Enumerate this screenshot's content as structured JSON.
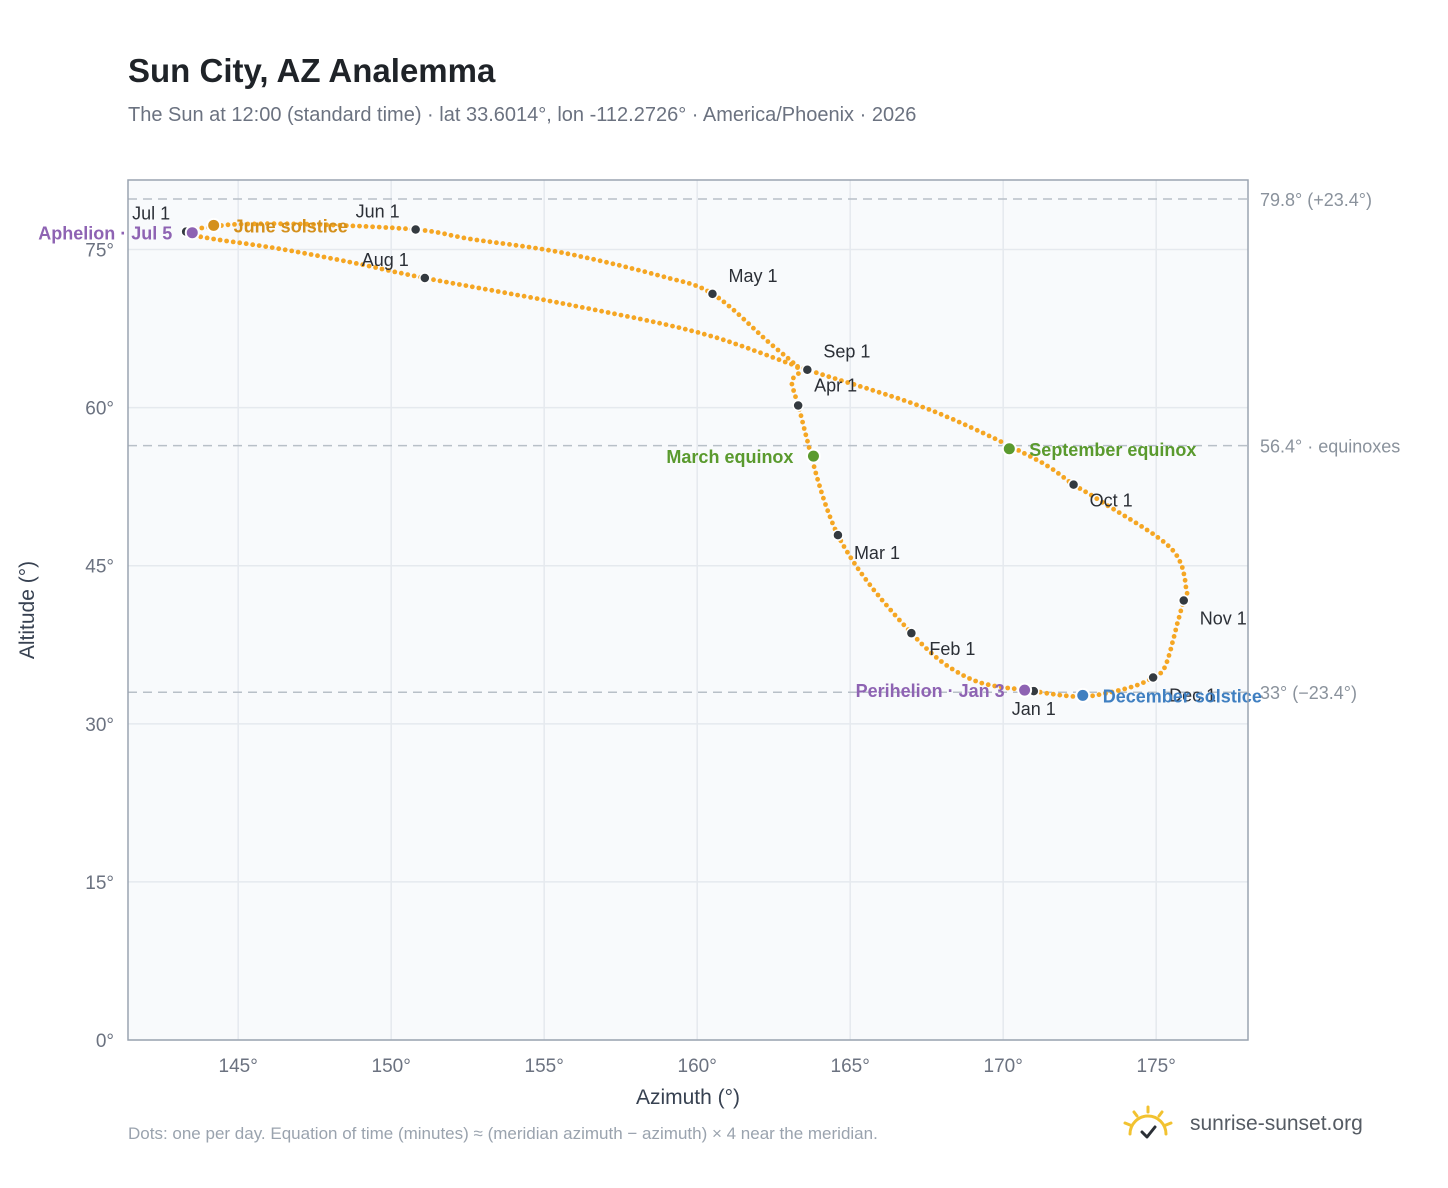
{
  "header": {
    "title": "Sun City, AZ Analemma",
    "subtitle": "The Sun at 12:00 (standard time) · lat 33.6014°, lon -112.2726° · America/Phoenix · 2026"
  },
  "footer": {
    "note": "Dots: one per day. Equation of time (minutes) ≈ (meridian azimuth − azimuth) × 4 near the meridian.",
    "brand": "sunrise-sunset.org",
    "brand_icon": "sun-check-icon"
  },
  "colors": {
    "path": "#f5a623",
    "month_dot": "#343a40",
    "equinox": "#5a9a2e",
    "june_solstice": "#d4901c",
    "december_solstice": "#3f7fc1",
    "aphelion_perihelion": "#8e63b3",
    "plot_bg": "#f8fafc",
    "grid": "#e5e9ee",
    "reference_line": "#b8c0c8"
  },
  "chart_data": {
    "type": "scatter",
    "xlabel": "Azimuth (°)",
    "ylabel": "Altitude (°)",
    "xlim": [
      141.4,
      178.0
    ],
    "ylim": [
      0,
      81.6
    ],
    "x_ticks": [
      145,
      150,
      155,
      160,
      165,
      170,
      175
    ],
    "x_tick_labels": [
      "145°",
      "150°",
      "155°",
      "160°",
      "165°",
      "170°",
      "175°"
    ],
    "y_ticks": [
      0,
      15,
      30,
      45,
      60,
      75
    ],
    "y_tick_labels": [
      "0°",
      "15°",
      "30°",
      "45°",
      "60°",
      "75°"
    ],
    "grid": true,
    "reference_lines": [
      {
        "altitude": 79.8,
        "label": "79.8° (+23.4°)"
      },
      {
        "altitude": 56.4,
        "label": "56.4° · equinoxes"
      },
      {
        "altitude": 33.0,
        "label": "33° (−23.4°)"
      }
    ],
    "daily_path": [
      [
        171.0,
        33.1
      ],
      [
        168.9,
        34.3
      ],
      [
        167.0,
        38.6
      ],
      [
        164.6,
        47.9
      ],
      [
        163.3,
        60.2
      ],
      [
        163.1,
        62.5
      ],
      [
        163.3,
        63.7
      ],
      [
        162.3,
        66.3
      ],
      [
        160.5,
        70.8
      ],
      [
        158.8,
        72.5
      ],
      [
        155.6,
        74.7
      ],
      [
        152.6,
        76.0
      ],
      [
        150.8,
        76.9
      ],
      [
        147.3,
        77.4
      ],
      [
        145.0,
        77.4
      ],
      [
        144.0,
        77.1
      ],
      [
        143.4,
        76.9
      ],
      [
        143.3,
        76.7
      ],
      [
        143.5,
        76.4
      ],
      [
        144.2,
        76.0
      ],
      [
        146.5,
        75.0
      ],
      [
        149.0,
        73.6
      ],
      [
        151.1,
        72.3
      ],
      [
        156.1,
        69.6
      ],
      [
        160.2,
        67.0
      ],
      [
        163.6,
        63.6
      ],
      [
        167.6,
        59.8
      ],
      [
        171.0,
        55.2
      ],
      [
        172.3,
        52.7
      ],
      [
        173.2,
        51.1
      ],
      [
        175.5,
        46.6
      ],
      [
        176.0,
        42.5
      ],
      [
        175.9,
        41.7
      ],
      [
        175.7,
        39.6
      ],
      [
        175.3,
        35.5
      ],
      [
        174.9,
        34.4
      ],
      [
        174.2,
        33.5
      ],
      [
        173.0,
        32.7
      ],
      [
        172.3,
        32.6
      ],
      [
        171.0,
        33.1
      ]
    ],
    "month_markers": [
      {
        "label": "Jan 1",
        "azimuth": 171.0,
        "altitude": 33.1
      },
      {
        "label": "Feb 1",
        "azimuth": 167.0,
        "altitude": 38.6
      },
      {
        "label": "Mar 1",
        "azimuth": 164.6,
        "altitude": 47.9
      },
      {
        "label": "Apr 1",
        "azimuth": 163.3,
        "altitude": 60.2
      },
      {
        "label": "May 1",
        "azimuth": 160.5,
        "altitude": 70.8
      },
      {
        "label": "Jun 1",
        "azimuth": 150.8,
        "altitude": 76.9
      },
      {
        "label": "Jul 1",
        "azimuth": 143.3,
        "altitude": 76.7
      },
      {
        "label": "Aug 1",
        "azimuth": 151.1,
        "altitude": 72.3
      },
      {
        "label": "Sep 1",
        "azimuth": 163.6,
        "altitude": 63.6
      },
      {
        "label": "Oct 1",
        "azimuth": 172.3,
        "altitude": 52.7
      },
      {
        "label": "Nov 1",
        "azimuth": 175.9,
        "altitude": 41.7
      },
      {
        "label": "Dec 1",
        "azimuth": 174.9,
        "altitude": 34.4
      }
    ],
    "events": [
      {
        "label": "March equinox",
        "azimuth": 163.8,
        "altitude": 55.4,
        "color_key": "equinox",
        "side": "left"
      },
      {
        "label": "September equinox",
        "azimuth": 170.2,
        "altitude": 56.1,
        "color_key": "equinox",
        "side": "right"
      },
      {
        "label": "June solstice",
        "azimuth": 144.2,
        "altitude": 77.3,
        "color_key": "june_solstice",
        "side": "right"
      },
      {
        "label": "December solstice",
        "azimuth": 172.6,
        "altitude": 32.7,
        "color_key": "december_solstice",
        "side": "right"
      },
      {
        "label": "Aphelion · Jul 5",
        "azimuth": 143.5,
        "altitude": 76.6,
        "color_key": "aphelion_perihelion",
        "side": "left"
      },
      {
        "label": "Perihelion · Jan 3",
        "azimuth": 170.7,
        "altitude": 33.2,
        "color_key": "aphelion_perihelion",
        "side": "left"
      }
    ]
  }
}
